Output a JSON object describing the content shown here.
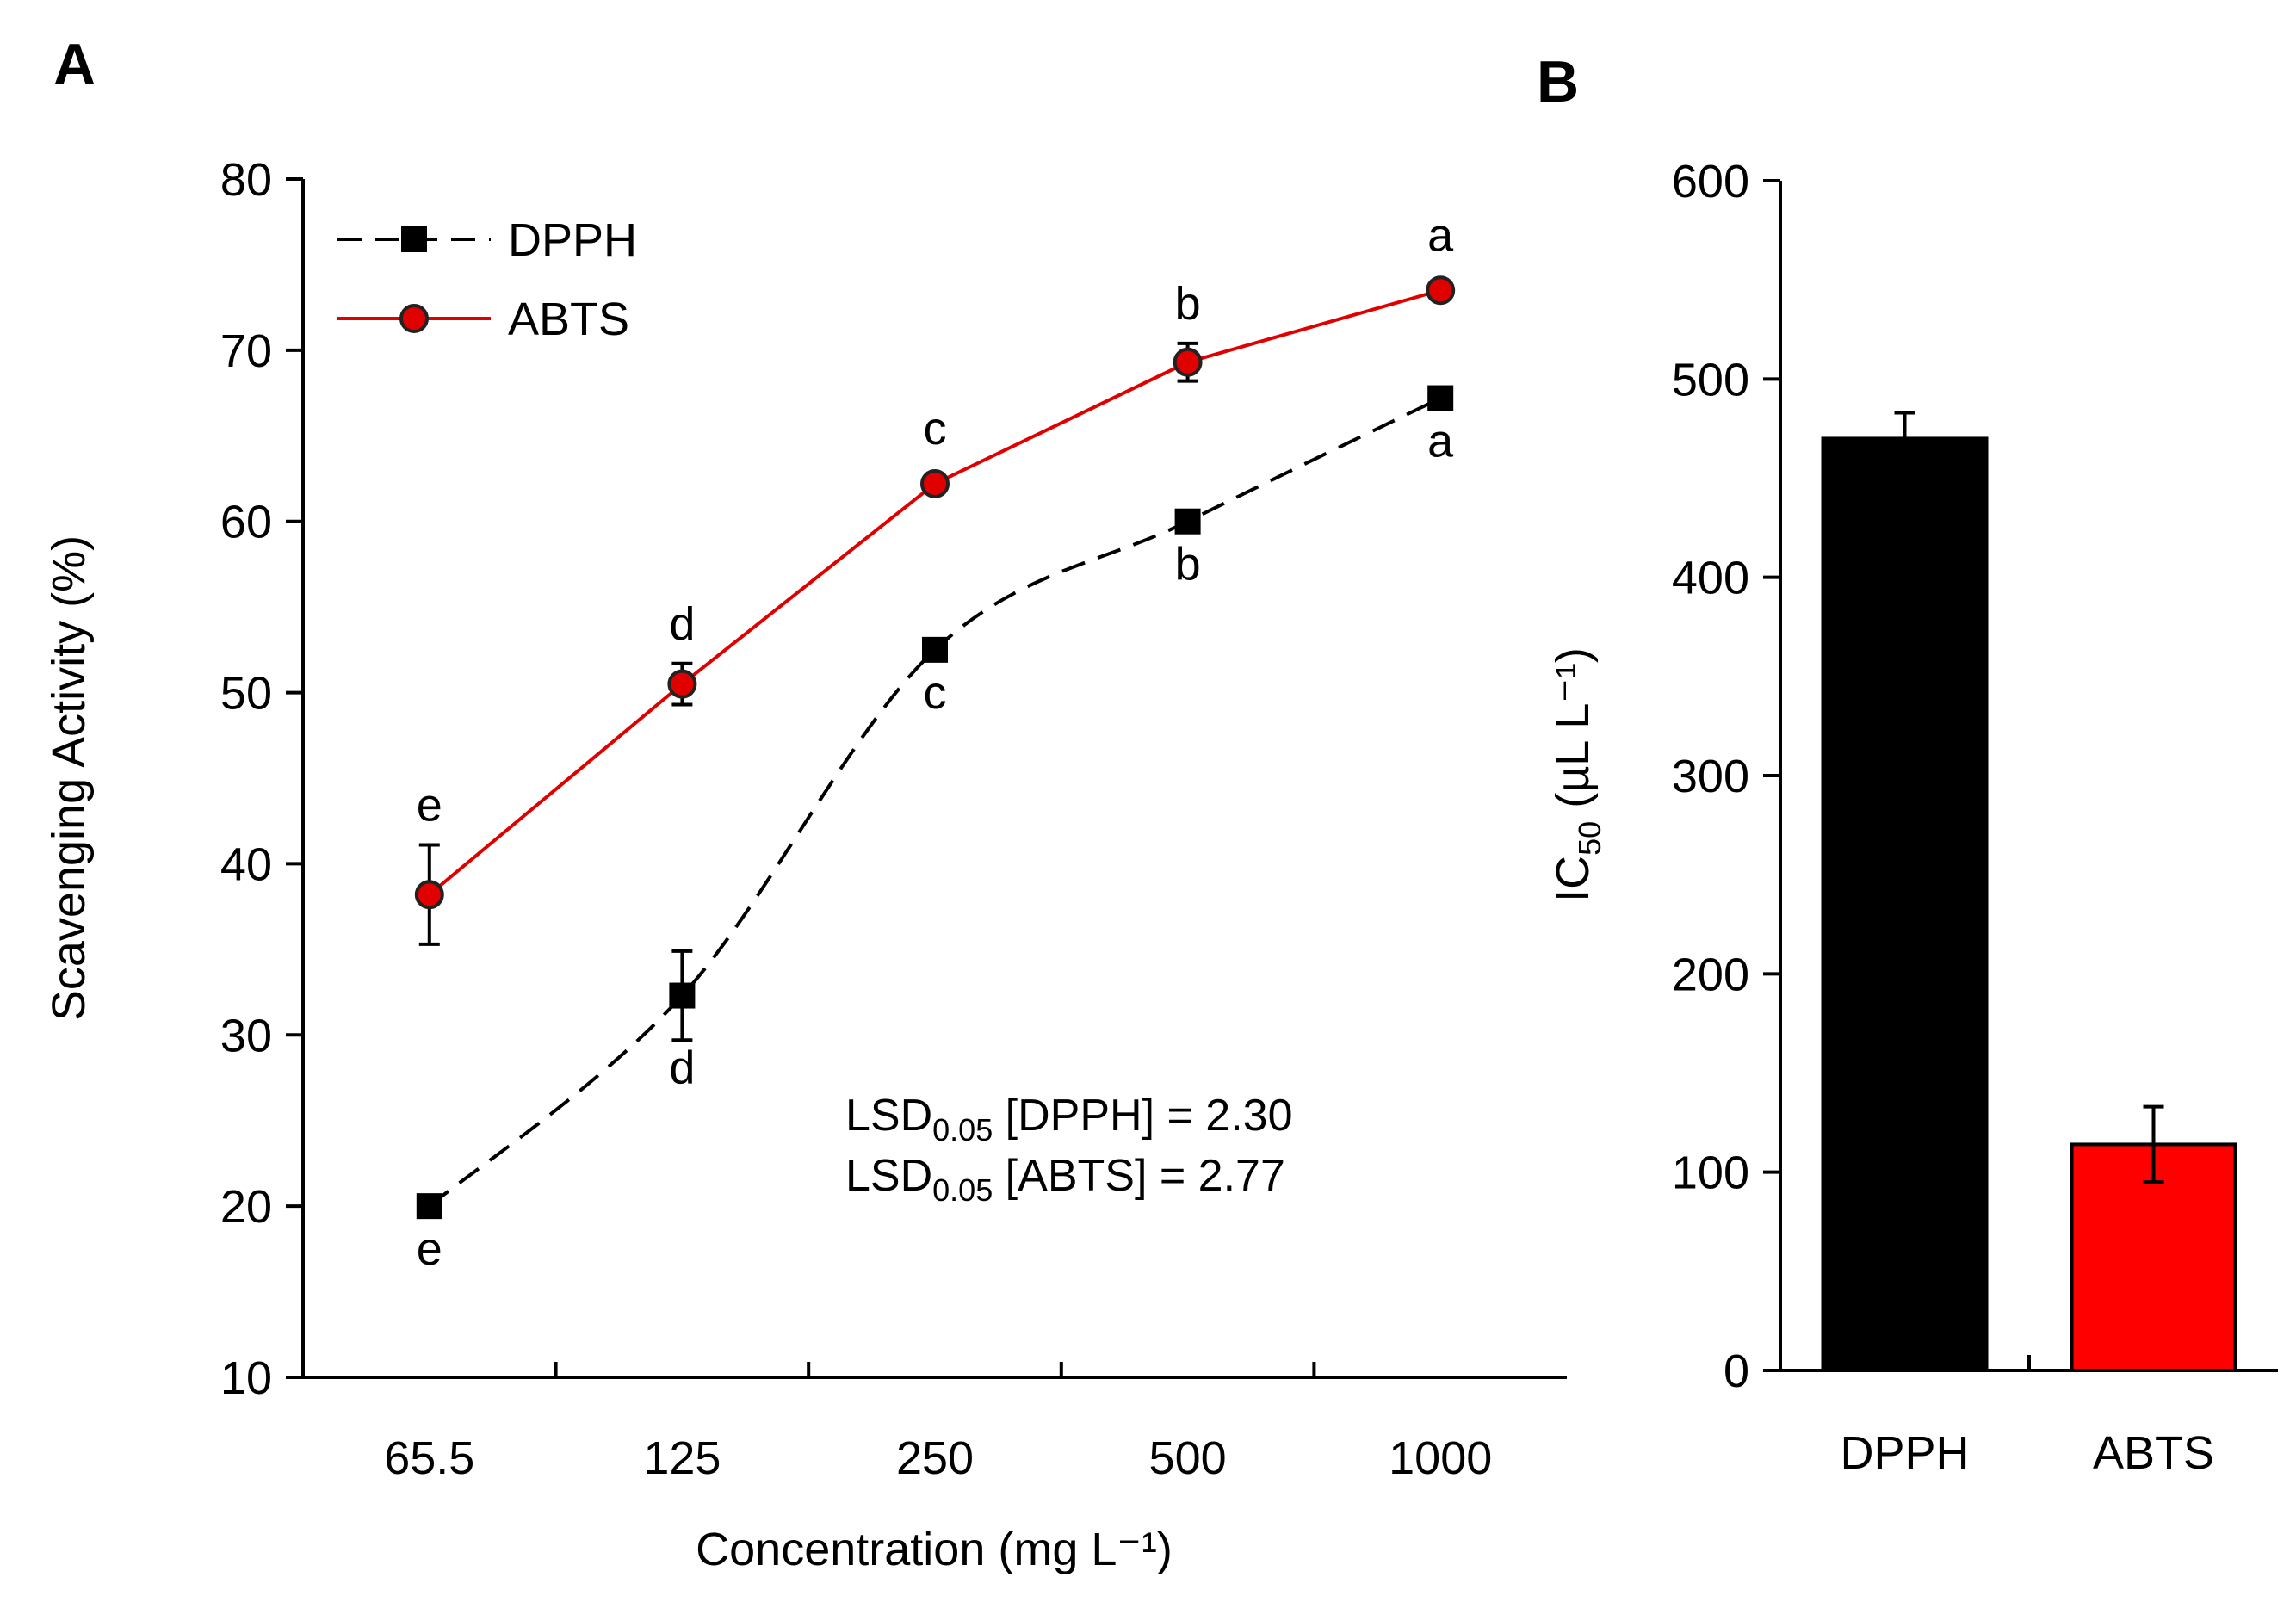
{
  "colors": {
    "dpph": "#000000",
    "abts": "#e00000",
    "axis": "#000000"
  },
  "chart_data": [
    {
      "panel_label": "A",
      "type": "line",
      "x_categories": [
        "65.5",
        "125",
        "250",
        "500",
        "1000"
      ],
      "xlabel": "Concentration (mg L⁻¹)",
      "ylabel": "Scavenging Activity (%)",
      "ylim": [
        10,
        80
      ],
      "yticks": [
        10,
        20,
        30,
        40,
        50,
        60,
        70,
        80
      ],
      "grid": false,
      "legend_position": "top-left",
      "series": [
        {
          "name": "DPPH",
          "marker": "square",
          "line_style": "dashed",
          "color": "#000000",
          "values": [
            20.0,
            32.3,
            52.5,
            60.0,
            67.2
          ],
          "errors": [
            0.3,
            2.6,
            0.5,
            0.3,
            0.4
          ],
          "letters": [
            "e",
            "d",
            "c",
            "b",
            "a"
          ],
          "letter_position": "below"
        },
        {
          "name": "ABTS",
          "marker": "circle",
          "line_style": "solid",
          "color": "#e00000",
          "values": [
            38.2,
            50.5,
            62.2,
            69.3,
            73.5
          ],
          "errors": [
            2.9,
            1.2,
            0.4,
            1.1,
            0.4
          ],
          "letters": [
            "e",
            "d",
            "c",
            "b",
            "a"
          ],
          "letter_position": "above"
        }
      ],
      "annotations": [
        {
          "prefix": "LSD",
          "subscript": "0.05",
          "text": "[DPPH] = 2.30"
        },
        {
          "prefix": "LSD",
          "subscript": "0.05",
          "text": "[ABTS] = 2.77"
        }
      ]
    },
    {
      "panel_label": "B",
      "type": "bar",
      "categories": [
        "DPPH",
        "ABTS"
      ],
      "values": [
        470,
        114
      ],
      "errors": [
        13,
        19
      ],
      "bar_colors": [
        "#000000",
        "#ff0000"
      ],
      "ylabel_main": "IC",
      "ylabel_sub": "50",
      "ylabel_rest": " (µL L⁻¹)",
      "ylim": [
        0,
        600
      ],
      "yticks": [
        0,
        100,
        200,
        300,
        400,
        500,
        600
      ],
      "grid": false
    }
  ]
}
